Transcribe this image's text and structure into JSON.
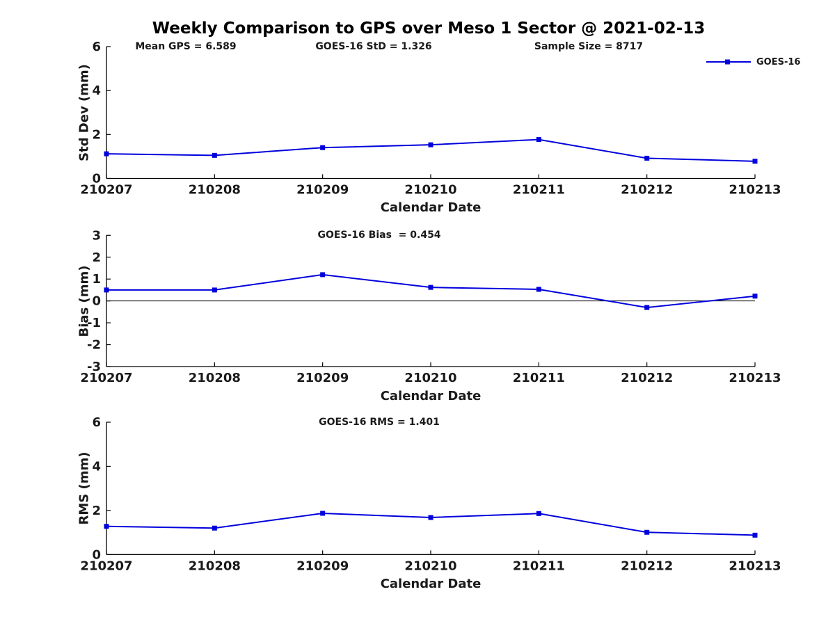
{
  "page_title": "Weekly Comparison to GPS over Meso 1 Sector @ 2021-02-13",
  "colors": {
    "line": "#0000dd",
    "axis": "#000000",
    "text": "#1a1a1a",
    "background": "#ffffff"
  },
  "legend": {
    "label": "GOES-16",
    "position": "top-right",
    "marker": "filled-square"
  },
  "header_stats": {
    "mean_gps": "Mean GPS = 6.589",
    "goes_std": "GOES-16 StD = 1.326",
    "sample_size": "Sample Size = 8717"
  },
  "chart_data": [
    {
      "name": "std-dev",
      "type": "line",
      "title": "",
      "xlabel": "Calendar Date",
      "ylabel": "Std Dev (mm)",
      "categories": [
        "210207",
        "210208",
        "210209",
        "210210",
        "210211",
        "210212",
        "210213"
      ],
      "series": [
        {
          "name": "GOES-16",
          "values": [
            1.12,
            1.05,
            1.4,
            1.53,
            1.77,
            0.92,
            0.78
          ]
        }
      ],
      "ylim": [
        0,
        6
      ],
      "yticks": [
        0,
        2,
        4,
        6
      ],
      "zero_line": false,
      "grid": false
    },
    {
      "name": "bias",
      "type": "line",
      "title": "GOES-16 Bias  = 0.454",
      "xlabel": "Calendar Date",
      "ylabel": "Bias (mm)",
      "categories": [
        "210207",
        "210208",
        "210209",
        "210210",
        "210211",
        "210212",
        "210213"
      ],
      "series": [
        {
          "name": "GOES-16",
          "values": [
            0.5,
            0.5,
            1.2,
            0.62,
            0.53,
            -0.3,
            0.22
          ]
        }
      ],
      "ylim": [
        -3,
        3
      ],
      "yticks": [
        -3,
        -2,
        -1,
        0,
        1,
        2,
        3
      ],
      "zero_line": true,
      "grid": false
    },
    {
      "name": "rms",
      "type": "line",
      "title": "GOES-16 RMS = 1.401",
      "xlabel": "Calendar Date",
      "ylabel": "RMS (mm)",
      "categories": [
        "210207",
        "210208",
        "210209",
        "210210",
        "210211",
        "210212",
        "210213"
      ],
      "series": [
        {
          "name": "GOES-16",
          "values": [
            1.28,
            1.2,
            1.87,
            1.68,
            1.86,
            1.01,
            0.88
          ]
        }
      ],
      "ylim": [
        0,
        6
      ],
      "yticks": [
        0,
        2,
        4,
        6
      ],
      "zero_line": false,
      "grid": false
    }
  ]
}
